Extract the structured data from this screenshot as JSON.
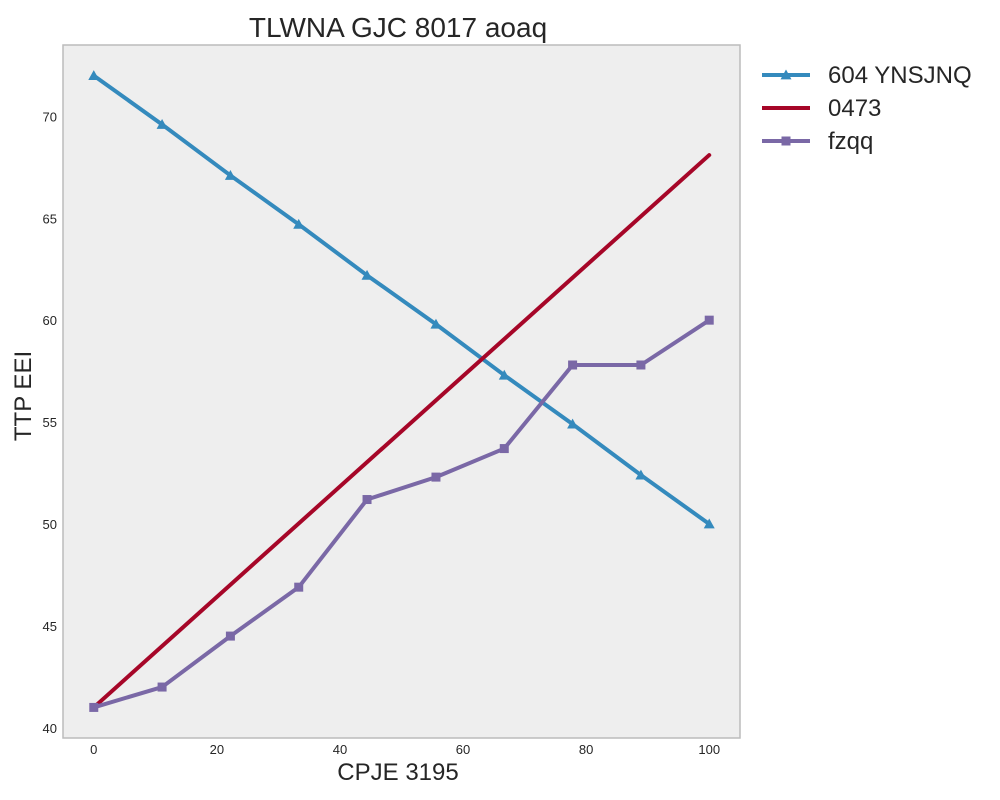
{
  "chart_data": {
    "type": "line",
    "title": "TLWNA GJC 8017 aoaq",
    "xlabel": "CPJE 3195",
    "ylabel": "TTP EEI",
    "xlim": [
      -5,
      105
    ],
    "ylim": [
      39.5,
      73.5
    ],
    "x_ticks": [
      0,
      20,
      40,
      60,
      80,
      100
    ],
    "y_ticks": [
      40,
      45,
      50,
      55,
      60,
      65,
      70
    ],
    "grid": false,
    "legend_position": "outside-right",
    "series": [
      {
        "name": "604 YNSJNQ",
        "color": "#348ABD",
        "marker": "triangle",
        "x": [
          0,
          11.1,
          22.2,
          33.3,
          44.4,
          55.6,
          66.7,
          77.8,
          88.9,
          100
        ],
        "y": [
          72.0,
          69.6,
          67.1,
          64.7,
          62.2,
          59.8,
          57.3,
          54.9,
          52.4,
          50.0
        ]
      },
      {
        "name": "0473",
        "color": "#A60628",
        "marker": "none",
        "x": [
          0,
          100
        ],
        "y": [
          41.0,
          68.1
        ]
      },
      {
        "name": "fzqq",
        "color": "#7A68A6",
        "marker": "square",
        "x": [
          0,
          11.1,
          22.2,
          33.3,
          44.4,
          55.6,
          66.7,
          77.8,
          88.9,
          100
        ],
        "y": [
          41.0,
          42.0,
          44.5,
          46.9,
          51.2,
          52.3,
          53.7,
          57.8,
          57.8,
          60.0
        ]
      }
    ]
  }
}
